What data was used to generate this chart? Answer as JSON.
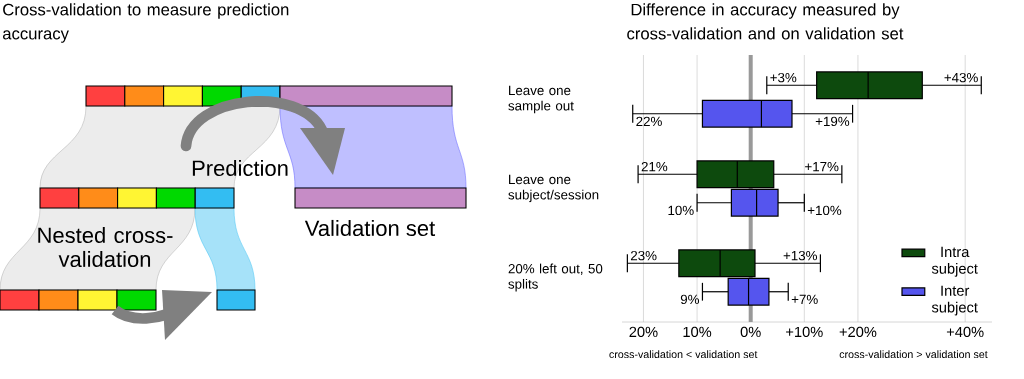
{
  "chart_data": [
    {
      "type": "other",
      "title": "Cross-validation to measure prediction accuracy",
      "annotations": [
        "Prediction",
        "Nested cross-validation",
        "Validation set"
      ]
    },
    {
      "type": "box",
      "orientation": "horizontal",
      "title": "Difference in accuracy measured by cross-validation and on validation set",
      "categories": [
        "Leave one sample out",
        "Leave one subject/session",
        "20% left out, 50 splits"
      ],
      "series": [
        {
          "name": "Intra subject",
          "color": "#0d4a0d",
          "boxes": [
            {
              "low": 3,
              "q1": 12.3,
              "median": 21.9,
              "q3": 32,
              "high": 43
            },
            {
              "low": -21,
              "q1": -10,
              "median": -2.5,
              "q3": 4.3,
              "high": 17
            },
            {
              "low": -23,
              "q1": -13.4,
              "median": -5.7,
              "q3": 0.8,
              "high": 13
            }
          ]
        },
        {
          "name": "Inter subject",
          "color": "#5555ee",
          "boxes": [
            {
              "low": -22,
              "q1": -9,
              "median": 2,
              "q3": 7.7,
              "high": 19
            },
            {
              "low": -10,
              "q1": -3.6,
              "median": 1.1,
              "q3": 5.1,
              "high": 10
            },
            {
              "low": -9,
              "q1": -4.2,
              "median": -0.4,
              "q3": 3.4,
              "high": 7
            }
          ]
        }
      ],
      "xlim": [
        -24,
        45
      ],
      "xticks": [
        {
          "value": -20,
          "label": "20%"
        },
        {
          "value": -10,
          "label": "10%"
        },
        {
          "value": 0,
          "label": "0%"
        },
        {
          "value": 10,
          "label": "+10%"
        },
        {
          "value": 20,
          "label": "+20%"
        },
        {
          "value": 40,
          "label": "+40%"
        }
      ],
      "grid": "x",
      "legend": "bottom right",
      "ref_lines": [
        {
          "axis": "x",
          "value": 0,
          "color": "#999999"
        }
      ],
      "annotations": [
        "cross-validation < validation set",
        "cross-validation > validation set",
        "+3%",
        "+43%",
        "22%",
        "+19%",
        "21%",
        "+17%",
        "10%",
        "+10%",
        "23%",
        "+13%",
        "9%",
        "+7%"
      ]
    }
  ]
}
